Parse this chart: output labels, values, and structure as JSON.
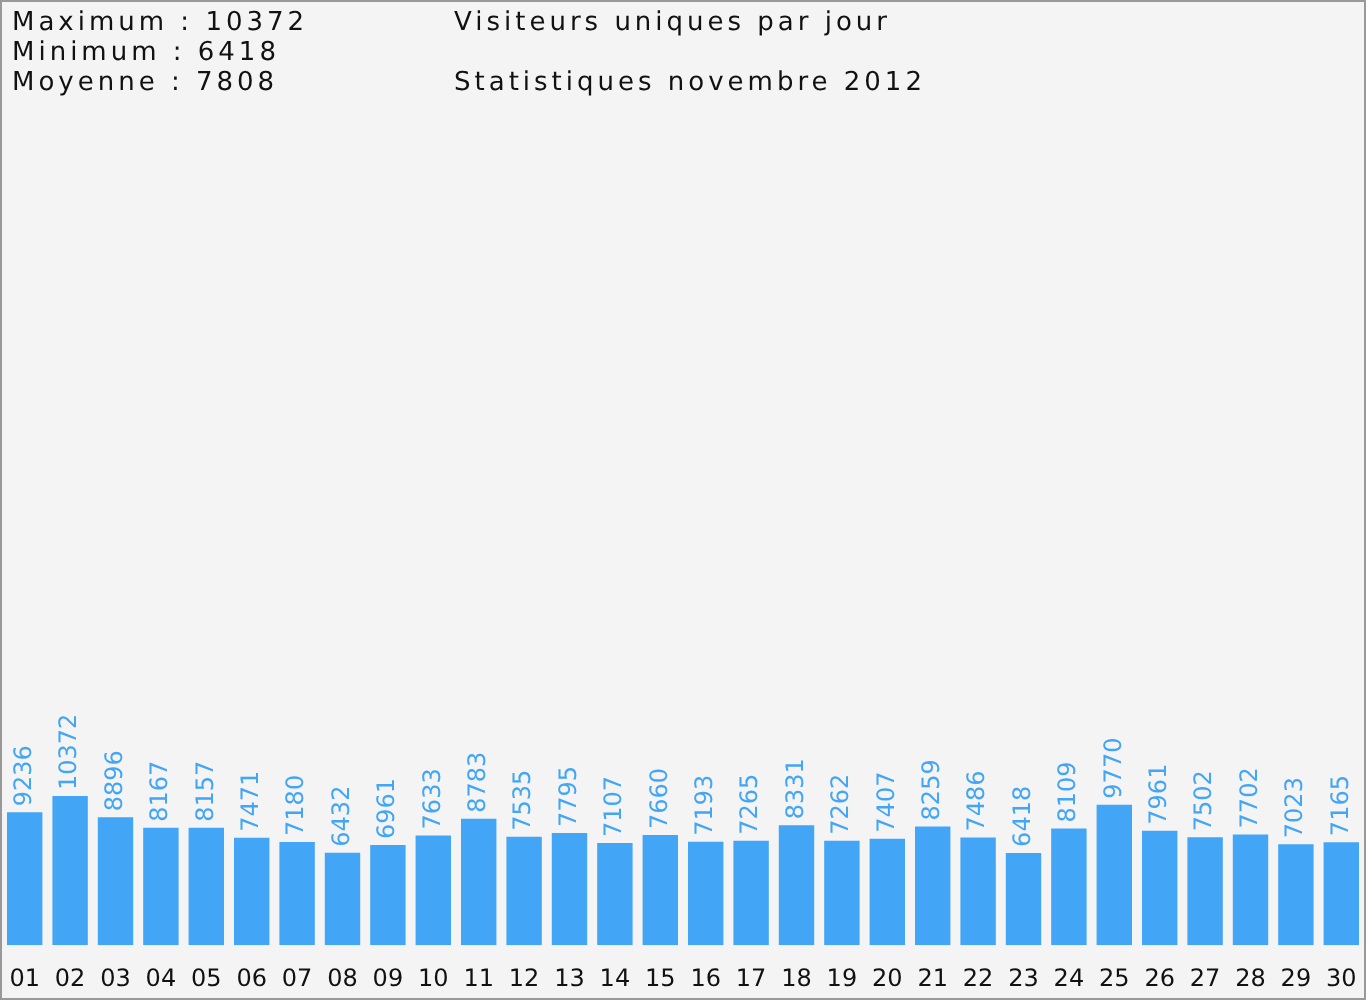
{
  "chart_data": {
    "type": "bar",
    "title": "Visiteurs uniques par jour",
    "subtitle": "Statistiques novembre 2012",
    "annotations": [
      "Maximum : 10372",
      "Minimum : 6418",
      "Moyenne : 7808"
    ],
    "categories": [
      "01",
      "02",
      "03",
      "04",
      "05",
      "06",
      "07",
      "08",
      "09",
      "10",
      "11",
      "12",
      "13",
      "14",
      "15",
      "16",
      "17",
      "18",
      "19",
      "20",
      "21",
      "22",
      "23",
      "24",
      "25",
      "26",
      "27",
      "28",
      "29",
      "30"
    ],
    "values": [
      9236,
      10372,
      8896,
      8167,
      8157,
      7471,
      7180,
      6432,
      6961,
      7633,
      8783,
      7535,
      7795,
      7107,
      7660,
      7193,
      7265,
      8331,
      7262,
      7407,
      8259,
      7486,
      6418,
      8109,
      9770,
      7961,
      7502,
      7702,
      7023,
      7165
    ],
    "color": "#42a5f5",
    "data_labels": true,
    "grid": false,
    "legend": false
  }
}
